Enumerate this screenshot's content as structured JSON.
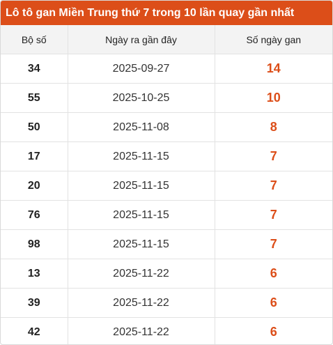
{
  "title": "Lô tô gan Miền Trung thứ 7 trong 10 lần quay gần nhất",
  "columns": [
    "Bộ số",
    "Ngày ra gần đây",
    "Số ngày gan"
  ],
  "accent_color": "#dc4e19",
  "rows": [
    {
      "number": "34",
      "date": "2025-09-27",
      "days": "14"
    },
    {
      "number": "55",
      "date": "2025-10-25",
      "days": "10"
    },
    {
      "number": "50",
      "date": "2025-11-08",
      "days": "8"
    },
    {
      "number": "17",
      "date": "2025-11-15",
      "days": "7"
    },
    {
      "number": "20",
      "date": "2025-11-15",
      "days": "7"
    },
    {
      "number": "76",
      "date": "2025-11-15",
      "days": "7"
    },
    {
      "number": "98",
      "date": "2025-11-15",
      "days": "7"
    },
    {
      "number": "13",
      "date": "2025-11-22",
      "days": "6"
    },
    {
      "number": "39",
      "date": "2025-11-22",
      "days": "6"
    },
    {
      "number": "42",
      "date": "2025-11-22",
      "days": "6"
    }
  ]
}
